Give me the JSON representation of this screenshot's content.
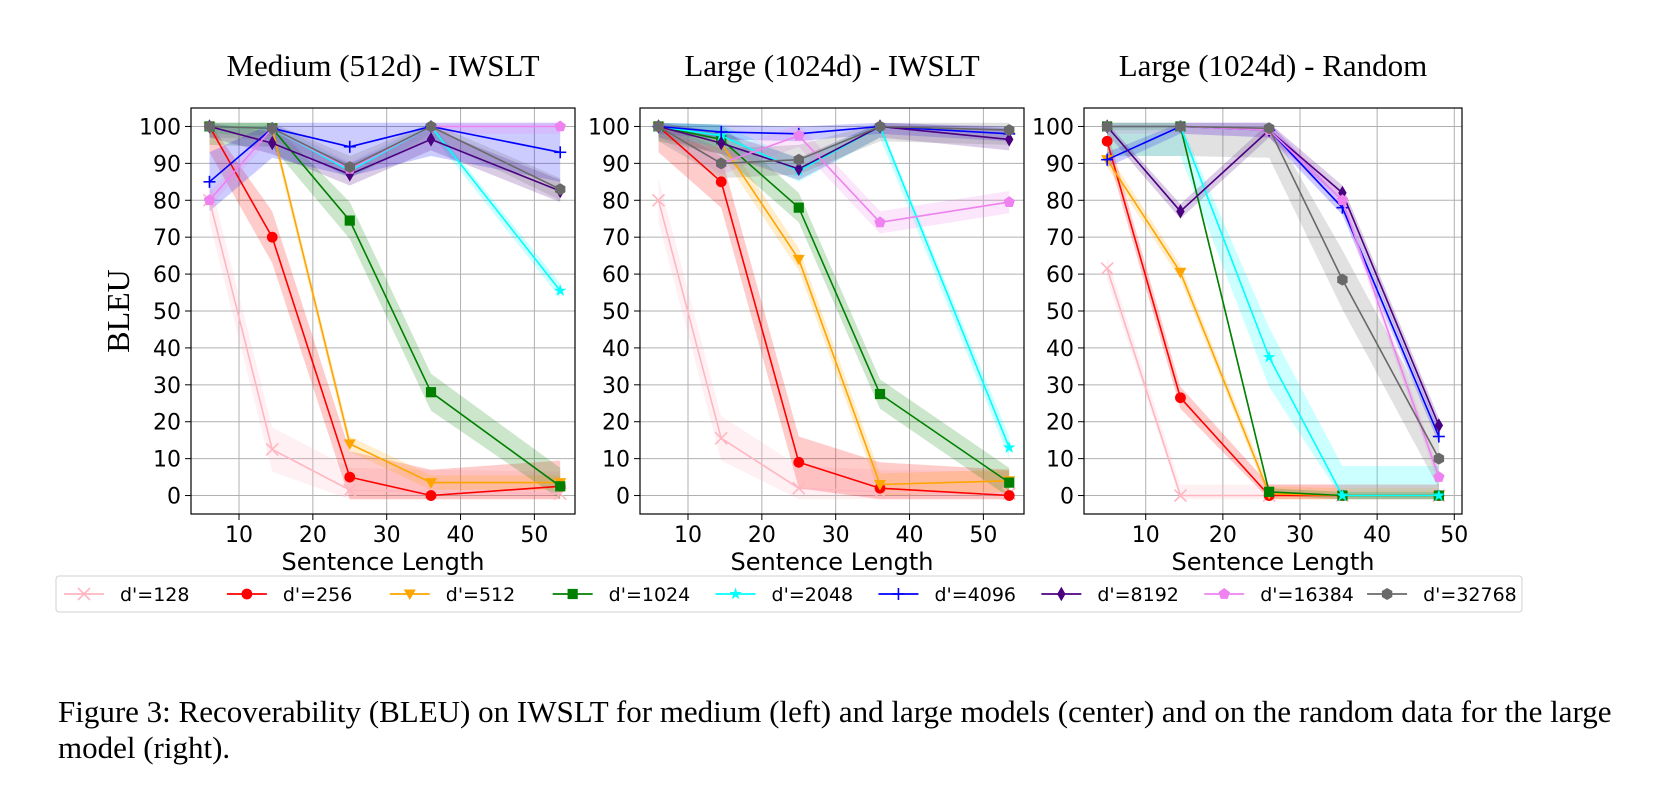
{
  "caption": "Figure 3: Recoverability (BLEU) on IWSLT for medium (left) and large models (center) and on the random data for the large model (right).",
  "legend": {
    "placement": "bottom",
    "entries": [
      {
        "label": "d'=128",
        "color": "#ffb6c1",
        "marker": "x"
      },
      {
        "label": "d'=256",
        "color": "#ff0000",
        "marker": "circle"
      },
      {
        "label": "d'=512",
        "color": "#ffa500",
        "marker": "triangle-down"
      },
      {
        "label": "d'=1024",
        "color": "#008000",
        "marker": "square"
      },
      {
        "label": "d'=2048",
        "color": "#00ffff",
        "marker": "star"
      },
      {
        "label": "d'=4096",
        "color": "#0000ff",
        "marker": "plus"
      },
      {
        "label": "d'=8192",
        "color": "#4b0082",
        "marker": "diamond"
      },
      {
        "label": "d'=16384",
        "color": "#ee82ee",
        "marker": "pentagon"
      },
      {
        "label": "d'=32768",
        "color": "#696969",
        "marker": "hexagon"
      }
    ]
  },
  "chart_data": [
    {
      "type": "line",
      "title": "Medium (512d) - IWSLT",
      "xlabel": "Sentence Length",
      "ylabel": "BLEU",
      "xlim": [
        3.5,
        55.5
      ],
      "ylim": [
        -5,
        105
      ],
      "xticks": [
        10,
        20,
        30,
        40,
        50
      ],
      "yticks": [
        0,
        10,
        20,
        30,
        40,
        50,
        60,
        70,
        80,
        90,
        100
      ],
      "grid": true,
      "x": [
        6,
        14.5,
        25,
        36,
        53.5
      ],
      "series": [
        {
          "name": "d'=128",
          "values": [
            80,
            12.5,
            1.5,
            1,
            0.5
          ],
          "band": 6
        },
        {
          "name": "d'=256",
          "values": [
            100,
            70,
            5,
            0,
            2.5
          ],
          "band": 7
        },
        {
          "name": "d'=512",
          "values": [
            100,
            99.5,
            14,
            3.5,
            3.5
          ],
          "band": 2
        },
        {
          "name": "d'=1024",
          "values": [
            100,
            99.5,
            74.5,
            28,
            2.5
          ],
          "band": 5
        },
        {
          "name": "d'=2048",
          "values": [
            100,
            99.5,
            88,
            100,
            55.5
          ],
          "band": 2
        },
        {
          "name": "d'=4096",
          "values": [
            85,
            99.5,
            94.5,
            100,
            93
          ],
          "band": 8
        },
        {
          "name": "d'=8192",
          "values": [
            100,
            95.5,
            87,
            96.5,
            82.5
          ],
          "band": 3
        },
        {
          "name": "d'=16384",
          "values": [
            80,
            99.5,
            88.5,
            100,
            100
          ],
          "band": 2
        },
        {
          "name": "d'=32768",
          "values": [
            100,
            99.5,
            89,
            100,
            83
          ],
          "band": 3
        }
      ]
    },
    {
      "type": "line",
      "title": "Large (1024d) - IWSLT",
      "xlabel": "Sentence Length",
      "ylabel": "",
      "xlim": [
        3.5,
        55.5
      ],
      "ylim": [
        -5,
        105
      ],
      "xticks": [
        10,
        20,
        30,
        40,
        50
      ],
      "yticks": [
        0,
        10,
        20,
        30,
        40,
        50,
        60,
        70,
        80,
        90,
        100
      ],
      "grid": true,
      "x": [
        6,
        14.5,
        25,
        36,
        53.5
      ],
      "series": [
        {
          "name": "d'=128",
          "values": [
            80,
            15.5,
            2,
            1,
            0.5
          ],
          "band": 6
        },
        {
          "name": "d'=256",
          "values": [
            100,
            85,
            9,
            2,
            0
          ],
          "band": 7
        },
        {
          "name": "d'=512",
          "values": [
            100,
            95.5,
            64,
            3,
            4
          ],
          "band": 3
        },
        {
          "name": "d'=1024",
          "values": [
            100,
            96.5,
            78,
            27.5,
            3.5
          ],
          "band": 4
        },
        {
          "name": "d'=2048",
          "values": [
            100,
            97.5,
            88,
            100,
            13
          ],
          "band": 3
        },
        {
          "name": "d'=4096",
          "values": [
            100,
            98.5,
            98,
            100,
            98
          ],
          "band": 2
        },
        {
          "name": "d'=8192",
          "values": [
            100,
            95.5,
            88.5,
            100,
            96.5
          ],
          "band": 3
        },
        {
          "name": "d'=16384",
          "values": [
            100,
            90,
            97.5,
            74,
            79.5
          ],
          "band": 3
        },
        {
          "name": "d'=32768",
          "values": [
            100,
            90,
            91,
            100,
            99
          ],
          "band": 4
        }
      ]
    },
    {
      "type": "line",
      "title": "Large (1024d) - Random",
      "xlabel": "Sentence Length",
      "ylabel": "",
      "xlim": [
        2,
        51
      ],
      "ylim": [
        -5,
        105
      ],
      "xticks": [
        10,
        20,
        30,
        40,
        50
      ],
      "yticks": [
        0,
        10,
        20,
        30,
        40,
        50,
        60,
        70,
        80,
        90,
        100
      ],
      "grid": true,
      "x": [
        5,
        14.5,
        26,
        35.5,
        48
      ],
      "series": [
        {
          "name": "d'=128",
          "values": [
            61.5,
            0,
            0,
            0,
            0
          ],
          "band": 3
        },
        {
          "name": "d'=256",
          "values": [
            96,
            26.5,
            0,
            0,
            0
          ],
          "band": 3
        },
        {
          "name": "d'=512",
          "values": [
            91,
            60.5,
            0.5,
            0,
            0
          ],
          "band": 2
        },
        {
          "name": "d'=1024",
          "values": [
            100,
            100,
            1,
            0,
            0
          ],
          "band": 1
        },
        {
          "name": "d'=2048",
          "values": [
            100,
            100,
            37.5,
            0,
            0
          ],
          "band": 8
        },
        {
          "name": "d'=4096",
          "values": [
            91,
            100,
            99,
            78,
            16
          ],
          "band": 2
        },
        {
          "name": "d'=8192",
          "values": [
            100,
            77,
            99,
            82,
            19
          ],
          "band": 2
        },
        {
          "name": "d'=16384",
          "values": [
            100,
            100,
            99,
            80,
            5
          ],
          "band": 2
        },
        {
          "name": "d'=32768",
          "values": [
            100,
            100,
            99.5,
            58.5,
            10
          ],
          "band": 8
        }
      ]
    }
  ]
}
